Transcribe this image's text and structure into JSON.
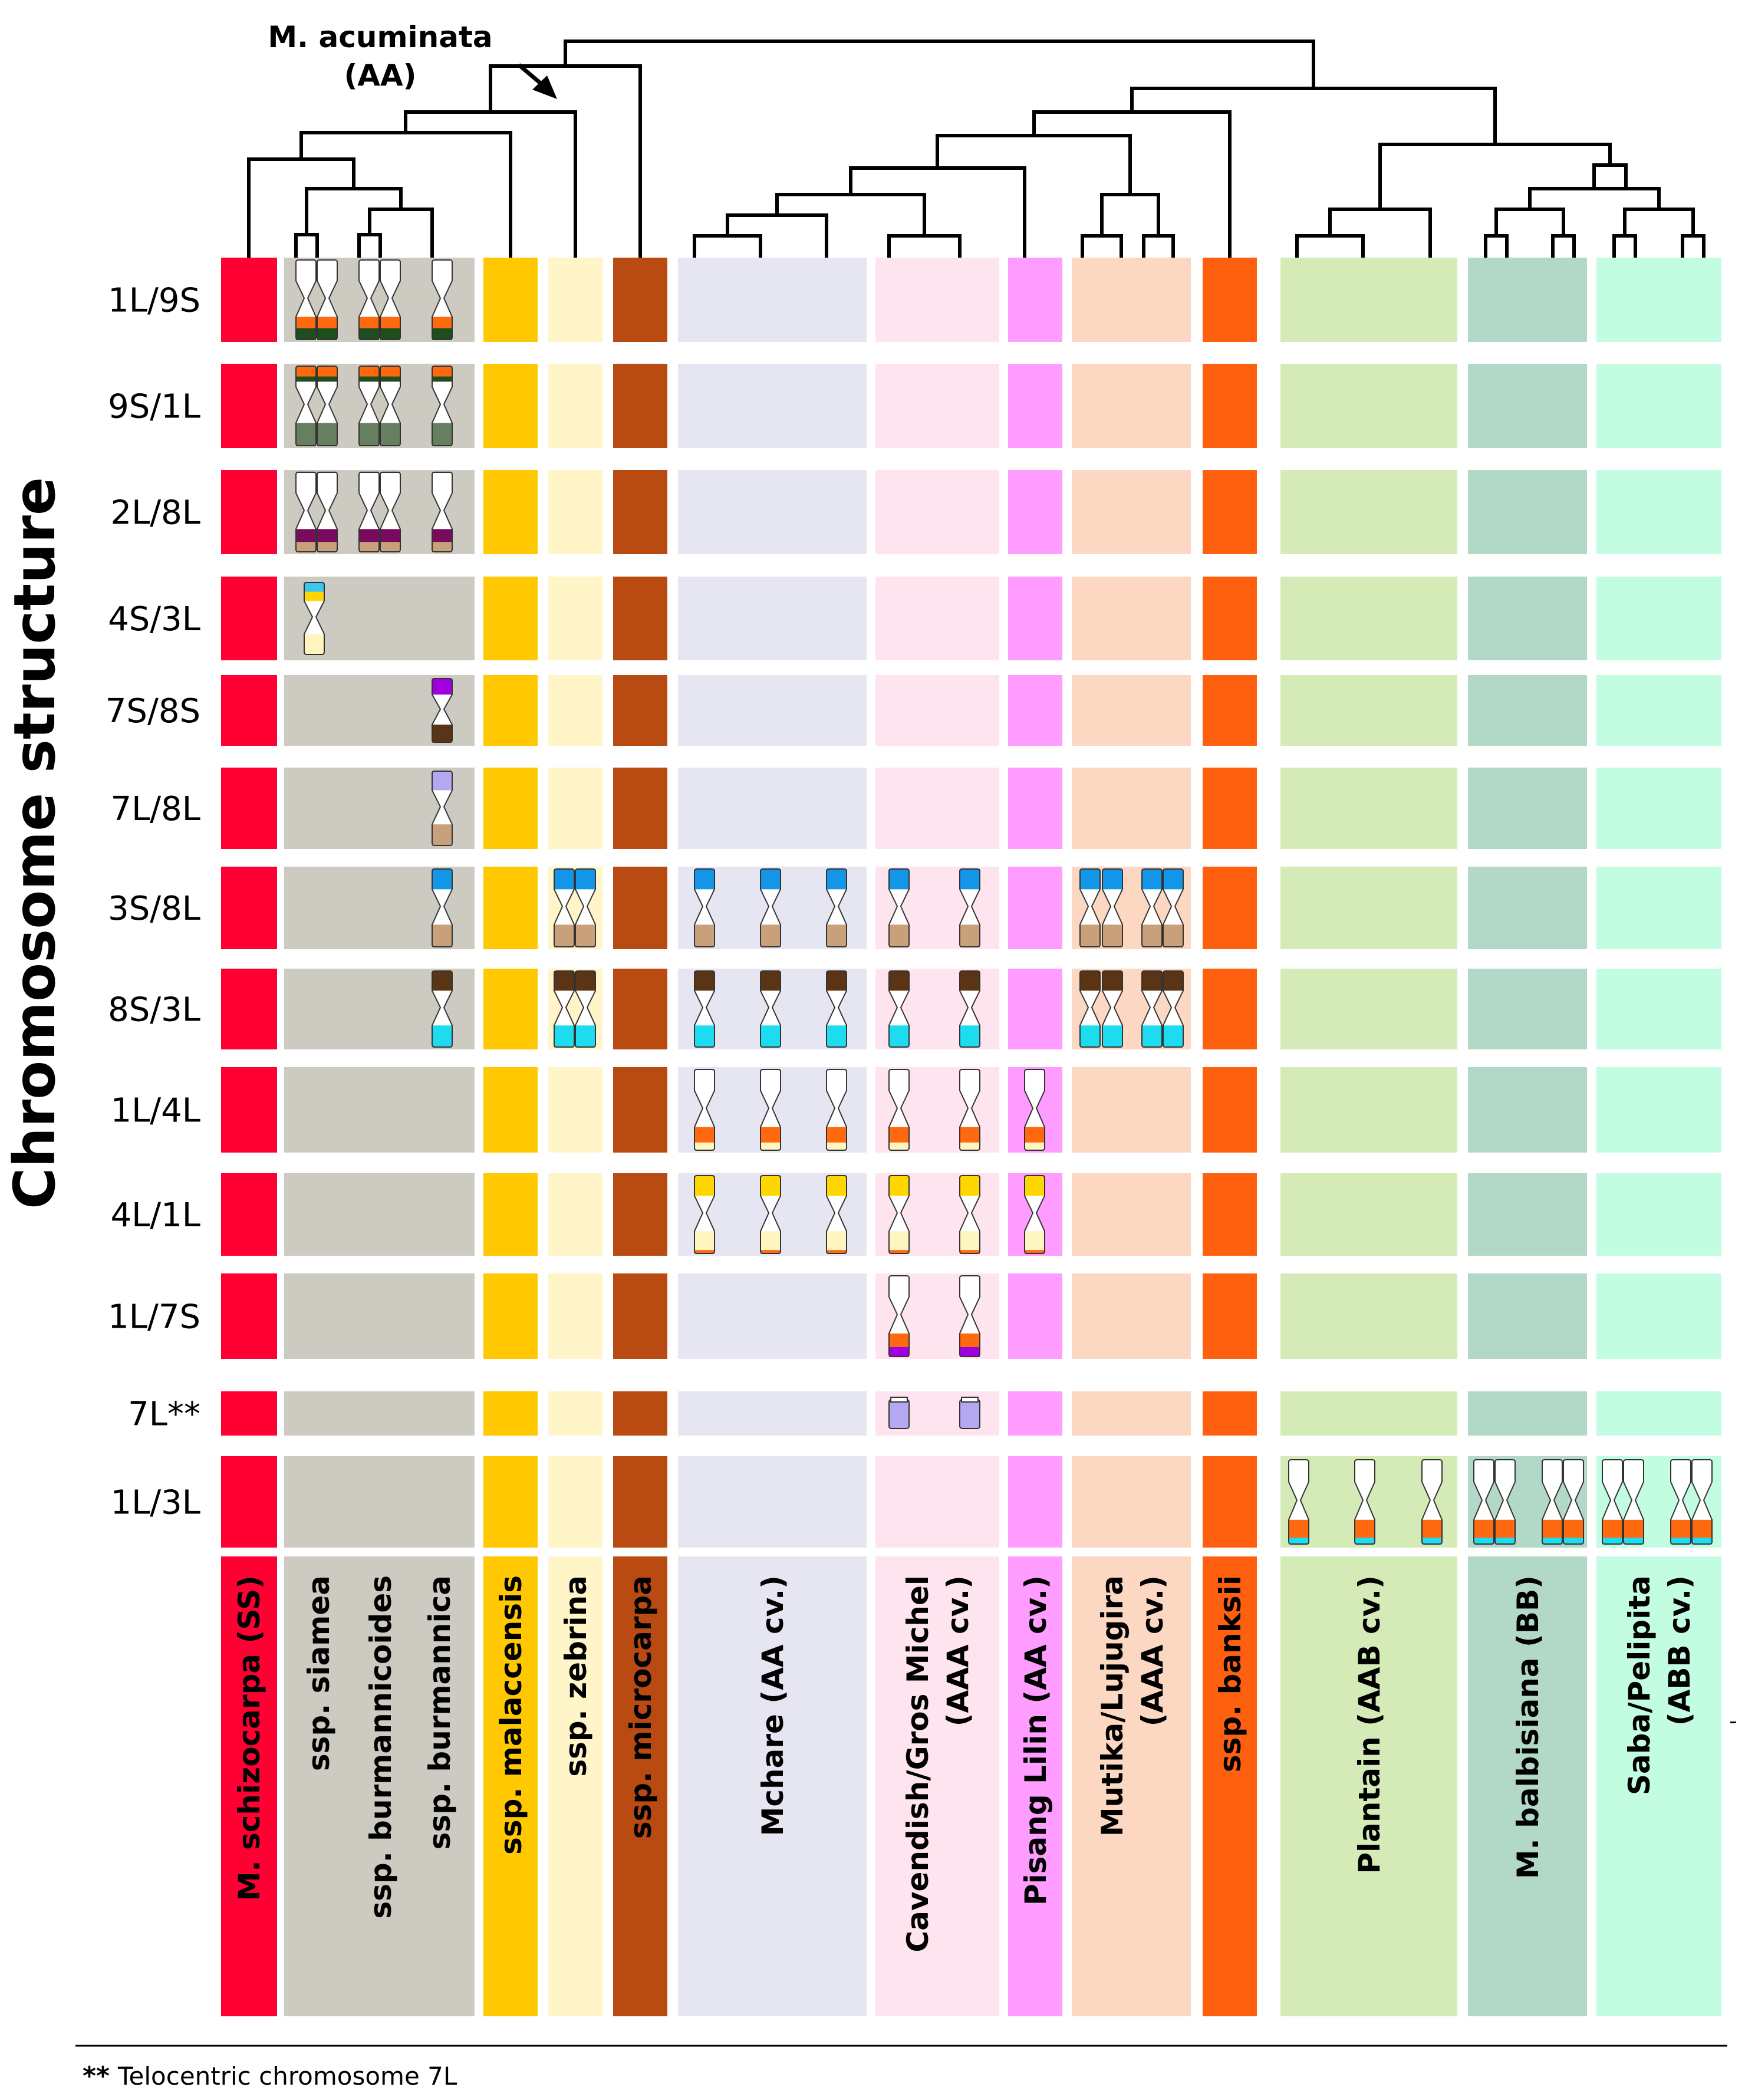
{
  "axis_title": "Chromosome structure",
  "root_label": "M. acuminata",
  "root_genome": "(AA)",
  "footnote_mark": "**",
  "footnote_text": "Telocentric chromosome 7L",
  "rows": [
    {
      "label": "1L/9S"
    },
    {
      "label": "9S/1L"
    },
    {
      "label": "2L/8L"
    },
    {
      "label": "4S/3L"
    },
    {
      "label": "7S/8S"
    },
    {
      "label": "7L/8L"
    },
    {
      "label": "3S/8L"
    },
    {
      "label": "8S/3L"
    },
    {
      "label": "1L/4L"
    },
    {
      "label": "4L/1L"
    },
    {
      "label": "1L/7S"
    },
    {
      "label": "7L**"
    },
    {
      "label": "1L/3L"
    }
  ],
  "groups": [
    {
      "key": "schizocarpa",
      "color": "#ff0033",
      "label_color": "#000000",
      "labels": [
        {
          "text": "M. schizocarpa (SS)"
        }
      ]
    },
    {
      "key": "burmannica_group",
      "color": "#cdcbc1",
      "label_color": "#000000",
      "labels": [
        {
          "text": "ssp. siamea"
        },
        {
          "text": "ssp. burmannicoides"
        },
        {
          "text": "ssp. burmannica"
        }
      ]
    },
    {
      "key": "malaccensis",
      "color": "#ffc800",
      "label_color": "#000000",
      "labels": [
        {
          "text": "ssp. malaccensis"
        }
      ]
    },
    {
      "key": "zebrina",
      "color": "#fff5c8",
      "label_color": "#000000",
      "labels": [
        {
          "text": "ssp. zebrina"
        }
      ]
    },
    {
      "key": "microcarpa",
      "color": "#b84a12",
      "label_color": "#000000",
      "labels": [
        {
          "text": "ssp. microcarpa"
        }
      ]
    },
    {
      "key": "mchare",
      "color": "#e6e6f2",
      "label_color": "#000000",
      "labels": [
        {
          "text": "Mchare (AA cv.)"
        }
      ]
    },
    {
      "key": "cavendish",
      "color": "#fde4ee",
      "label_color": "#000000",
      "labels": [
        {
          "text": "Cavendish/Gros Michel"
        },
        {
          "text": "(AAA cv.)"
        }
      ]
    },
    {
      "key": "pisang",
      "color": "#ff9cff",
      "label_color": "#000000",
      "labels": [
        {
          "text": "Pisang Lilin (AA cv.)"
        }
      ]
    },
    {
      "key": "mutika",
      "color": "#fcd8c2",
      "label_color": "#000000",
      "labels": [
        {
          "text": "Mutika/Lujugira"
        },
        {
          "text": "(AAA cv.)"
        }
      ]
    },
    {
      "key": "banksii",
      "color": "#ff6010",
      "label_color": "#000000",
      "labels": [
        {
          "text": "ssp. banksii"
        }
      ]
    },
    {
      "key": "plantain",
      "color": "#d4ebb8",
      "label_color": "#000000",
      "labels": [
        {
          "text": "Plantain (AAB cv.)"
        }
      ]
    },
    {
      "key": "balbisiana",
      "color": "#b2d9c8",
      "label_color": "#000000",
      "labels": [
        {
          "text": "M. balbisiana (BB)"
        }
      ]
    },
    {
      "key": "saba",
      "color": "#c2fde2",
      "label_color": "#000000",
      "labels": [
        {
          "text": "Saba/Pelipita"
        },
        {
          "text": "(ABB cv.)"
        }
      ]
    }
  ],
  "chromosome_colors": {
    "chr1_orange": "#ff6a10",
    "chr9_dark_green": "#1e4d1e",
    "chr9_sage_green": "#667f5e",
    "chr2_purple": "#7a0a5e",
    "chr8_tan": "#c8a07a",
    "chr4_yellow": "#ffd700",
    "chr4_cream": "#fff5c0",
    "chr3_light_blue": "#3cc8ee",
    "chr3_blue": "#1496e8",
    "chr7_violet": "#a000e0",
    "chr7_lavender": "#b4a8f0",
    "chr8_brown": "#5a3414",
    "chr3_cyan": "#1edcf0",
    "blank": "#ffffff"
  },
  "tree_color": "#000000"
}
